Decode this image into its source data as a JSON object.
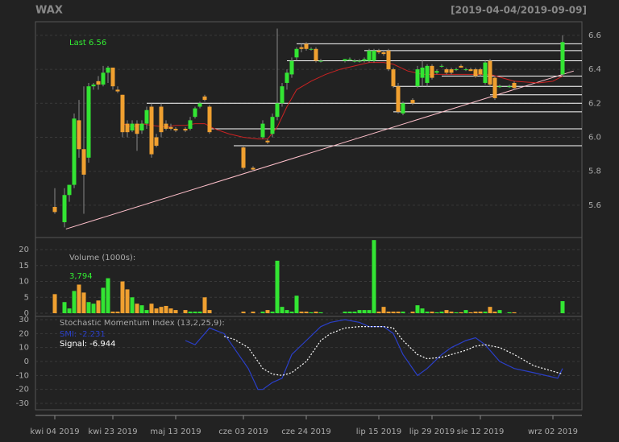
{
  "chart_data": [
    {
      "type": "candlestick",
      "title": "WAX",
      "subtitle": "[2019-04-04/2019-09-09]",
      "annotation": "Last 6.56",
      "up_color": "#33e533",
      "down_color": "#f0a030",
      "x": [
        0,
        2,
        3,
        4,
        5,
        6,
        7,
        8,
        9,
        10,
        11,
        12,
        13,
        14,
        15,
        16,
        17,
        18,
        19,
        20,
        21,
        22,
        23,
        24,
        25,
        27,
        28,
        29,
        30,
        31,
        32,
        39,
        41,
        43,
        44,
        45,
        46,
        47,
        48,
        49,
        50,
        51,
        52,
        53,
        54,
        55,
        60,
        61,
        62,
        63,
        64,
        65,
        66,
        67,
        68,
        69,
        70,
        71,
        72,
        74,
        75,
        76,
        77,
        78,
        79,
        80,
        81,
        82,
        83,
        84,
        85,
        86,
        87,
        88,
        89,
        90,
        91,
        92,
        94,
        95,
        105
      ],
      "open": [
        5.59,
        5.5,
        5.66,
        5.72,
        6.1,
        5.93,
        5.88,
        6.3,
        6.33,
        6.31,
        6.38,
        6.41,
        6.28,
        6.25,
        6.08,
        6.04,
        6.08,
        6.04,
        6.08,
        6.18,
        6.0,
        6.18,
        6.08,
        6.06,
        6.05,
        6.05,
        6.05,
        6.12,
        6.18,
        6.24,
        6.18,
        5.94,
        5.82,
        6.0,
        5.98,
        6.02,
        6.12,
        6.2,
        6.32,
        6.37,
        6.47,
        6.53,
        6.55,
        6.52,
        6.52,
        6.45,
        6.45,
        6.46,
        6.45,
        6.45,
        6.45,
        6.45,
        6.45,
        6.51,
        6.5,
        6.51,
        6.4,
        6.3,
        6.14,
        6.22,
        6.3,
        6.35,
        6.32,
        6.42,
        6.38,
        6.42,
        6.4,
        6.4,
        6.4,
        6.42,
        6.4,
        6.4,
        6.4,
        6.4,
        6.32,
        6.45,
        6.35,
        6.3,
        6.3,
        6.32,
        6.37
      ],
      "high": [
        5.7,
        5.7,
        5.72,
        6.14,
        6.22,
        6.3,
        6.32,
        6.32,
        6.36,
        6.42,
        6.42,
        6.41,
        6.3,
        6.25,
        6.1,
        6.1,
        6.1,
        6.1,
        6.18,
        6.2,
        6.02,
        6.2,
        6.1,
        6.08,
        6.06,
        6.06,
        6.12,
        6.18,
        6.21,
        6.25,
        6.19,
        5.95,
        5.83,
        6.1,
        5.99,
        6.14,
        6.64,
        6.32,
        6.4,
        6.47,
        6.53,
        6.55,
        6.56,
        6.53,
        6.53,
        6.46,
        6.46,
        6.47,
        6.46,
        6.46,
        6.47,
        6.52,
        6.52,
        6.52,
        6.51,
        6.52,
        6.41,
        6.32,
        6.21,
        6.23,
        6.42,
        6.45,
        6.43,
        6.43,
        6.4,
        6.43,
        6.41,
        6.41,
        6.41,
        6.43,
        6.41,
        6.41,
        6.41,
        6.41,
        6.45,
        6.46,
        6.36,
        6.31,
        6.31,
        6.33,
        6.6
      ],
      "low": [
        5.55,
        5.47,
        5.62,
        5.7,
        5.88,
        5.55,
        5.85,
        6.28,
        6.28,
        6.3,
        6.32,
        6.28,
        6.26,
        6.0,
        6.0,
        6.03,
        5.92,
        6.02,
        6.05,
        5.88,
        5.94,
        6.0,
        6.04,
        6.04,
        6.03,
        6.03,
        6.04,
        6.11,
        6.17,
        6.21,
        6.02,
        5.81,
        5.8,
        5.99,
        5.96,
        6.0,
        6.1,
        6.18,
        6.28,
        6.35,
        6.45,
        6.5,
        6.51,
        6.51,
        6.44,
        6.44,
        6.44,
        6.45,
        6.44,
        6.44,
        6.44,
        6.44,
        6.44,
        6.49,
        6.48,
        6.39,
        6.29,
        6.14,
        6.13,
        6.19,
        6.29,
        6.3,
        6.3,
        6.34,
        6.37,
        6.41,
        6.37,
        6.37,
        6.39,
        6.41,
        6.39,
        6.39,
        6.35,
        6.36,
        6.31,
        6.3,
        6.22,
        6.29,
        6.29,
        6.28,
        6.36
      ],
      "close": [
        5.56,
        5.66,
        5.72,
        6.11,
        5.93,
        5.78,
        6.3,
        6.31,
        6.31,
        6.38,
        6.41,
        6.3,
        6.27,
        6.03,
        6.03,
        6.08,
        6.02,
        6.08,
        6.16,
        5.9,
        5.95,
        6.03,
        6.05,
        6.05,
        6.04,
        6.04,
        6.1,
        6.17,
        6.2,
        6.22,
        6.03,
        5.82,
        5.81,
        6.08,
        5.97,
        6.12,
        6.2,
        6.3,
        6.38,
        6.45,
        6.52,
        6.52,
        6.52,
        6.52,
        6.45,
        6.45,
        6.46,
        6.46,
        6.45,
        6.45,
        6.46,
        6.51,
        6.51,
        6.5,
        6.49,
        6.4,
        6.3,
        6.15,
        6.2,
        6.2,
        6.4,
        6.41,
        6.42,
        6.35,
        6.39,
        6.42,
        6.38,
        6.38,
        6.4,
        6.41,
        6.4,
        6.39,
        6.36,
        6.37,
        6.44,
        6.31,
        6.23,
        6.3,
        6.3,
        6.29,
        6.56
      ],
      "ma": {
        "color": "#cc2222",
        "x": [
          14,
          16,
          18,
          20,
          23,
          25,
          27,
          29,
          31,
          33,
          36,
          39,
          42,
          44,
          46,
          48,
          50,
          53,
          56,
          59,
          62,
          65,
          68,
          70,
          73,
          76,
          80,
          85,
          90,
          95,
          100,
          103,
          105
        ],
        "values": [
          6.08,
          6.06,
          6.08,
          6.07,
          6.06,
          6.07,
          6.07,
          6.08,
          6.08,
          6.05,
          6.02,
          6.0,
          5.99,
          5.99,
          6.06,
          6.18,
          6.28,
          6.33,
          6.37,
          6.4,
          6.42,
          6.44,
          6.44,
          6.43,
          6.39,
          6.37,
          6.37,
          6.37,
          6.37,
          6.33,
          6.32,
          6.33,
          6.36
        ]
      },
      "hlines": [
        {
          "x": [
            50,
            109
          ],
          "value": 6.55
        },
        {
          "x": [
            64,
            109
          ],
          "value": 6.51
        },
        {
          "x": [
            48,
            109
          ],
          "value": 6.45
        },
        {
          "x": [
            80,
            109
          ],
          "value": 6.36
        },
        {
          "x": [
            70,
            109
          ],
          "value": 6.3
        },
        {
          "x": [
            90,
            109
          ],
          "value": 6.25
        },
        {
          "x": [
            19,
            109
          ],
          "value": 6.2
        },
        {
          "x": [
            70,
            109
          ],
          "value": 6.15
        },
        {
          "x": [
            32,
            109
          ],
          "value": 6.05
        },
        {
          "x": [
            37,
            109
          ],
          "value": 5.95
        }
      ],
      "trendline": {
        "color": "#ffc0cb",
        "x": [
          2.3,
          107.3
        ],
        "values": [
          5.46,
          6.39
        ]
      },
      "xlim": [
        -4,
        109
      ],
      "ylim": [
        5.41,
        6.68
      ],
      "yticks": [
        {
          "value": 5.6,
          "label": "5.6"
        },
        {
          "value": 5.8,
          "label": "5.8"
        },
        {
          "value": 6.0,
          "label": "6.0"
        },
        {
          "value": 6.2,
          "label": "6.2"
        },
        {
          "value": 6.4,
          "label": "6.4"
        },
        {
          "value": 6.6,
          "label": "6.6"
        }
      ]
    },
    {
      "type": "volume",
      "title": "Volume (1000s):",
      "last_label": "3,794",
      "values": [
        6,
        3.5,
        1.5,
        7,
        9,
        6.5,
        3.5,
        3,
        4,
        8,
        11,
        0.5,
        0.5,
        10,
        7.5,
        5,
        3,
        2.5,
        1,
        3,
        1.5,
        2,
        2.3,
        1.5,
        1,
        1,
        0.5,
        0.5,
        0.5,
        5,
        1,
        0.5,
        0.5,
        0.5,
        1,
        0.5,
        16.5,
        2,
        1,
        0.5,
        5.5,
        0.5,
        0.5,
        0.3,
        0.5,
        0.3,
        0.5,
        0.5,
        0.5,
        1,
        1,
        1,
        23,
        0.5,
        2,
        0.5,
        0.5,
        0.5,
        0.5,
        0.5,
        2.5,
        1.5,
        0.5,
        0.5,
        0.3,
        0.5,
        1,
        0.5,
        0.3,
        0.3,
        1,
        0.3,
        0.5,
        0.5,
        0.5,
        2,
        0.5,
        1,
        0.3,
        0.3,
        3.794
      ],
      "xlim": [
        -4,
        109
      ],
      "ylim": [
        -1,
        23.8
      ],
      "yticks": [
        0,
        5,
        10,
        15,
        20
      ]
    },
    {
      "type": "line",
      "title": "Stochastic Momentum Index (13,2,25,9):",
      "x": [
        27,
        29,
        32,
        35,
        37,
        40,
        42,
        43,
        45,
        47,
        49,
        52,
        55,
        57,
        60,
        63,
        65,
        68,
        70,
        72,
        75,
        77,
        80,
        82,
        85,
        87,
        89,
        92,
        95,
        99,
        104,
        105
      ],
      "series": [
        {
          "name": "SMI: -2.231",
          "color": "#2a3fc8",
          "dash": false,
          "values": [
            15,
            12,
            24,
            20,
            10,
            -5,
            -20,
            -20,
            -15,
            -12,
            5,
            15,
            25,
            28,
            30,
            28,
            25,
            25,
            20,
            5,
            -10,
            -5,
            5,
            10,
            15,
            17,
            12,
            0,
            -5,
            -8,
            -12,
            -5
          ]
        },
        {
          "name": "Signal: -6.944",
          "color": "#ffffff",
          "dash": true,
          "values": [
            null,
            null,
            null,
            18,
            16,
            10,
            0,
            -5,
            -9,
            -10,
            -8,
            0,
            15,
            20,
            24,
            25,
            25,
            25,
            24,
            15,
            5,
            2,
            3,
            5,
            8,
            11,
            12,
            10,
            5,
            -3,
            -8,
            -9
          ]
        }
      ],
      "xlim": [
        -4,
        109
      ],
      "ylim": [
        -34.6,
        32.3
      ],
      "yticks": [
        -30,
        -20,
        -10,
        0,
        10,
        20,
        30
      ],
      "xticks": [
        {
          "value": 0,
          "label": "kwi 04 2019"
        },
        {
          "value": 12,
          "label": "kwi 23 2019"
        },
        {
          "value": 25,
          "label": "maj 13 2019"
        },
        {
          "value": 39,
          "label": "cze 03 2019"
        },
        {
          "value": 52,
          "label": "cze 24 2019"
        },
        {
          "value": 67,
          "label": "lip 15 2019"
        },
        {
          "value": 78,
          "label": "lip 29 2019"
        },
        {
          "value": 88,
          "label": "sie 12 2019"
        },
        {
          "value": 103,
          "label": "wrz 02 2019"
        }
      ]
    }
  ]
}
